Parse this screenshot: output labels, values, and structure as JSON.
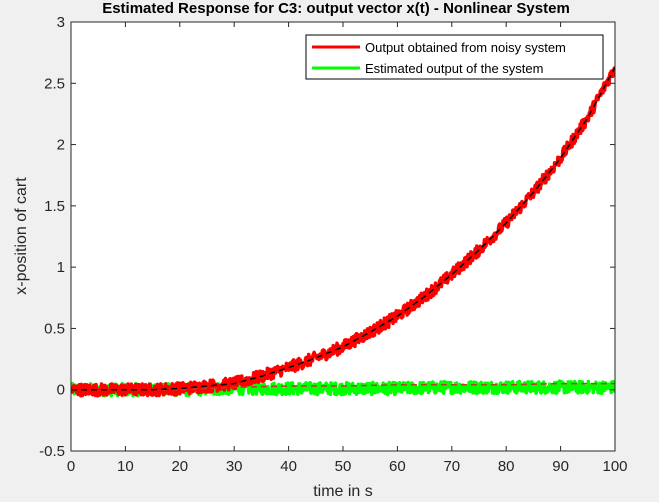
{
  "chart_data": {
    "type": "line",
    "title": "Estimated Response for C3: output vector x(t) - Nonlinear System",
    "xlabel": "time in s",
    "ylabel": "x-position of cart",
    "xlim": [
      0,
      100
    ],
    "ylim": [
      -0.5,
      3
    ],
    "xticks": [
      0,
      10,
      20,
      30,
      40,
      50,
      60,
      70,
      80,
      90,
      100
    ],
    "yticks": [
      -0.5,
      0,
      0.5,
      1,
      1.5,
      2,
      2.5,
      3
    ],
    "x_tick_labels": [
      "0",
      "10",
      "20",
      "30",
      "40",
      "50",
      "60",
      "70",
      "80",
      "90",
      "100"
    ],
    "y_tick_labels": [
      "-0.5",
      "0",
      "0.5",
      "1",
      "1.5",
      "2",
      "2.5",
      "3"
    ],
    "grid": false,
    "legend_position": "top-right",
    "series": [
      {
        "name": "Output obtained from noisy system",
        "color": "#ff0000",
        "style": "solid-noisy",
        "x": [
          0,
          5,
          10,
          15,
          20,
          25,
          30,
          35,
          40,
          45,
          50,
          55,
          60,
          65,
          70,
          75,
          80,
          85,
          90,
          95,
          100
        ],
        "values": [
          0.0,
          0.0,
          0.0,
          0.0,
          0.01,
          0.03,
          0.05,
          0.11,
          0.18,
          0.26,
          0.35,
          0.47,
          0.6,
          0.76,
          0.94,
          1.14,
          1.36,
          1.61,
          1.89,
          2.22,
          2.63
        ]
      },
      {
        "name": "Estimated output of the system",
        "color": "#00ff00",
        "style": "solid-noisy",
        "x": [
          0,
          10,
          20,
          30,
          40,
          50,
          60,
          70,
          80,
          90,
          100
        ],
        "values": [
          0.0,
          0.0,
          0.0,
          0.01,
          0.01,
          0.01,
          0.01,
          0.02,
          0.02,
          0.02,
          0.02
        ]
      },
      {
        "color": "#c0392b",
        "style": "dashed",
        "x": [
          0,
          10,
          20,
          30,
          40,
          50,
          60,
          70,
          80,
          90,
          100
        ],
        "values": [
          0.0,
          0.0,
          0.0,
          0.02,
          0.03,
          0.03,
          0.04,
          0.04,
          0.04,
          0.05,
          0.05
        ]
      },
      {
        "color": "#000000",
        "style": "dashed",
        "x": [
          0,
          5,
          10,
          15,
          20,
          25,
          30,
          35,
          40,
          45,
          50,
          55,
          60,
          65,
          70,
          75,
          80,
          85,
          90,
          95,
          100
        ],
        "values": [
          0.0,
          0.0,
          0.0,
          0.0,
          0.01,
          0.03,
          0.05,
          0.11,
          0.18,
          0.26,
          0.35,
          0.47,
          0.6,
          0.76,
          0.94,
          1.14,
          1.36,
          1.61,
          1.89,
          2.22,
          2.63
        ]
      }
    ],
    "noise_amplitude": 0.05
  }
}
